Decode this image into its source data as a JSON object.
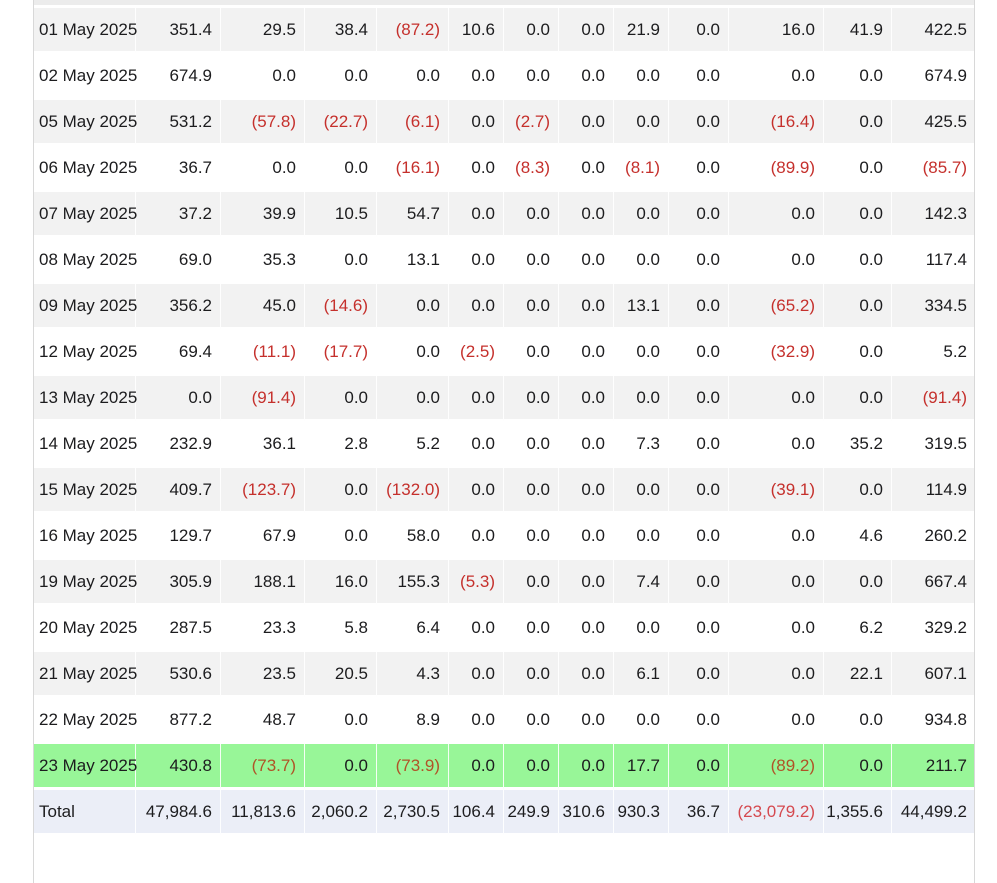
{
  "table": {
    "rows": [
      {
        "date": "01 May 2025",
        "values": [
          "351.4",
          "29.5",
          "38.4",
          "(87.2)",
          "10.6",
          "0.0",
          "0.0",
          "21.9",
          "0.0",
          "16.0",
          "41.9",
          "422.5"
        ],
        "highlight": false
      },
      {
        "date": "02 May 2025",
        "values": [
          "674.9",
          "0.0",
          "0.0",
          "0.0",
          "0.0",
          "0.0",
          "0.0",
          "0.0",
          "0.0",
          "0.0",
          "0.0",
          "674.9"
        ],
        "highlight": false
      },
      {
        "date": "05 May 2025",
        "values": [
          "531.2",
          "(57.8)",
          "(22.7)",
          "(6.1)",
          "0.0",
          "(2.7)",
          "0.0",
          "0.0",
          "0.0",
          "(16.4)",
          "0.0",
          "425.5"
        ],
        "highlight": false
      },
      {
        "date": "06 May 2025",
        "values": [
          "36.7",
          "0.0",
          "0.0",
          "(16.1)",
          "0.0",
          "(8.3)",
          "0.0",
          "(8.1)",
          "0.0",
          "(89.9)",
          "0.0",
          "(85.7)"
        ],
        "highlight": false
      },
      {
        "date": "07 May 2025",
        "values": [
          "37.2",
          "39.9",
          "10.5",
          "54.7",
          "0.0",
          "0.0",
          "0.0",
          "0.0",
          "0.0",
          "0.0",
          "0.0",
          "142.3"
        ],
        "highlight": false
      },
      {
        "date": "08 May 2025",
        "values": [
          "69.0",
          "35.3",
          "0.0",
          "13.1",
          "0.0",
          "0.0",
          "0.0",
          "0.0",
          "0.0",
          "0.0",
          "0.0",
          "117.4"
        ],
        "highlight": false
      },
      {
        "date": "09 May 2025",
        "values": [
          "356.2",
          "45.0",
          "(14.6)",
          "0.0",
          "0.0",
          "0.0",
          "0.0",
          "13.1",
          "0.0",
          "(65.2)",
          "0.0",
          "334.5"
        ],
        "highlight": false
      },
      {
        "date": "12 May 2025",
        "values": [
          "69.4",
          "(11.1)",
          "(17.7)",
          "0.0",
          "(2.5)",
          "0.0",
          "0.0",
          "0.0",
          "0.0",
          "(32.9)",
          "0.0",
          "5.2"
        ],
        "highlight": false
      },
      {
        "date": "13 May 2025",
        "values": [
          "0.0",
          "(91.4)",
          "0.0",
          "0.0",
          "0.0",
          "0.0",
          "0.0",
          "0.0",
          "0.0",
          "0.0",
          "0.0",
          "(91.4)"
        ],
        "highlight": false
      },
      {
        "date": "14 May 2025",
        "values": [
          "232.9",
          "36.1",
          "2.8",
          "5.2",
          "0.0",
          "0.0",
          "0.0",
          "7.3",
          "0.0",
          "0.0",
          "35.2",
          "319.5"
        ],
        "highlight": false
      },
      {
        "date": "15 May 2025",
        "values": [
          "409.7",
          "(123.7)",
          "0.0",
          "(132.0)",
          "0.0",
          "0.0",
          "0.0",
          "0.0",
          "0.0",
          "(39.1)",
          "0.0",
          "114.9"
        ],
        "highlight": false
      },
      {
        "date": "16 May 2025",
        "values": [
          "129.7",
          "67.9",
          "0.0",
          "58.0",
          "0.0",
          "0.0",
          "0.0",
          "0.0",
          "0.0",
          "0.0",
          "4.6",
          "260.2"
        ],
        "highlight": false
      },
      {
        "date": "19 May 2025",
        "values": [
          "305.9",
          "188.1",
          "16.0",
          "155.3",
          "(5.3)",
          "0.0",
          "0.0",
          "7.4",
          "0.0",
          "0.0",
          "0.0",
          "667.4"
        ],
        "highlight": false
      },
      {
        "date": "20 May 2025",
        "values": [
          "287.5",
          "23.3",
          "5.8",
          "6.4",
          "0.0",
          "0.0",
          "0.0",
          "0.0",
          "0.0",
          "0.0",
          "6.2",
          "329.2"
        ],
        "highlight": false
      },
      {
        "date": "21 May 2025",
        "values": [
          "530.6",
          "23.5",
          "20.5",
          "4.3",
          "0.0",
          "0.0",
          "0.0",
          "6.1",
          "0.0",
          "0.0",
          "22.1",
          "607.1"
        ],
        "highlight": false
      },
      {
        "date": "22 May 2025",
        "values": [
          "877.2",
          "48.7",
          "0.0",
          "8.9",
          "0.0",
          "0.0",
          "0.0",
          "0.0",
          "0.0",
          "0.0",
          "0.0",
          "934.8"
        ],
        "highlight": false
      },
      {
        "date": "23 May 2025",
        "values": [
          "430.8",
          "(73.7)",
          "0.0",
          "(73.9)",
          "0.0",
          "0.0",
          "0.0",
          "17.7",
          "0.0",
          "(89.2)",
          "0.0",
          "211.7"
        ],
        "highlight": true
      }
    ],
    "total": {
      "label": "Total",
      "values": [
        "47,984.6",
        "11,813.6",
        "2,060.2",
        "2,730.5",
        "106.4",
        "249.9",
        "310.6",
        "930.3",
        "36.7",
        "(23,079.2)",
        "1,355.6",
        "44,499.2"
      ]
    }
  },
  "colors": {
    "negative": "#c5302c",
    "negative_on_highlight": "#b05327",
    "negative_on_total": "#d5494f",
    "row_alt_gray": "#f2f2f2",
    "highlight_green": "#98f698",
    "total_row_bg": "#ebeef7",
    "table_border": "#d8d8d8",
    "cutoff_sliver": "#ececec"
  }
}
